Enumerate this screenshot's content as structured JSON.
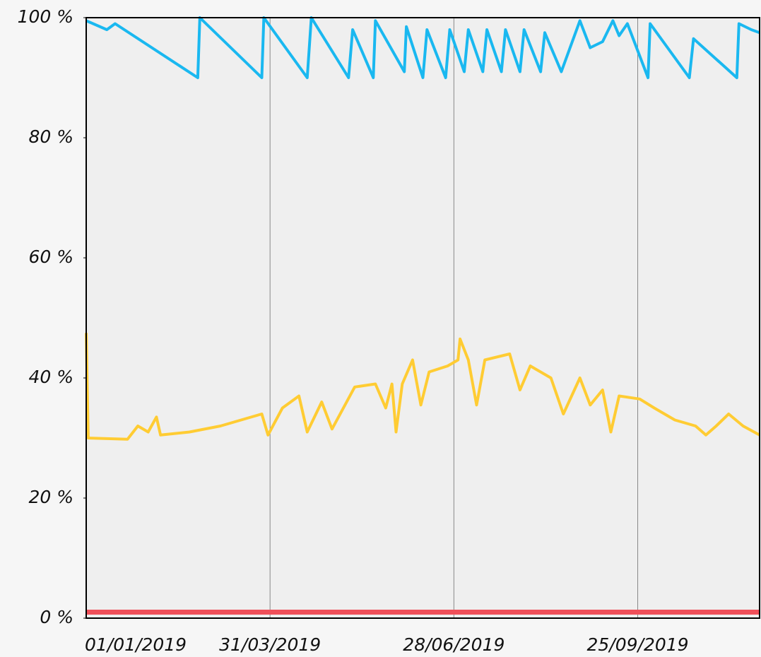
{
  "chart_data": {
    "type": "line",
    "xlim": [
      "2019-01-01",
      "2019-11-23"
    ],
    "xticks": [
      {
        "value": "2019-01-01",
        "label": "01/01/2019"
      },
      {
        "value": "2019-03-31",
        "label": "31/03/2019"
      },
      {
        "value": "2019-06-28",
        "label": "28/06/2019"
      },
      {
        "value": "2019-09-25",
        "label": "25/09/2019"
      }
    ],
    "ylim": [
      0,
      100
    ],
    "yticks": [
      {
        "value": 0,
        "label": "0 %"
      },
      {
        "value": 20,
        "label": "20 %"
      },
      {
        "value": 40,
        "label": "40 %"
      },
      {
        "value": 60,
        "label": "60 %"
      },
      {
        "value": 80,
        "label": "80 %"
      },
      {
        "value": 100,
        "label": "100 %"
      }
    ],
    "grid": true,
    "series": [
      {
        "color": "#1ab8f0",
        "x": [
          "2019-01-01",
          "2019-01-11",
          "2019-01-15",
          "2019-02-24",
          "2019-02-25",
          "2019-03-27",
          "2019-03-28",
          "2019-04-18",
          "2019-04-20",
          "2019-05-08",
          "2019-05-10",
          "2019-05-20",
          "2019-05-21",
          "2019-06-04",
          "2019-06-05",
          "2019-06-13",
          "2019-06-15",
          "2019-06-24",
          "2019-06-26",
          "2019-07-03",
          "2019-07-05",
          "2019-07-12",
          "2019-07-14",
          "2019-07-21",
          "2019-07-23",
          "2019-07-30",
          "2019-08-01",
          "2019-08-09",
          "2019-08-11",
          "2019-08-19",
          "2019-08-28",
          "2019-09-02",
          "2019-09-08",
          "2019-09-13",
          "2019-09-16",
          "2019-09-20",
          "2019-09-30",
          "2019-10-01",
          "2019-10-20",
          "2019-10-22",
          "2019-11-12",
          "2019-11-13",
          "2019-11-19",
          "2019-11-23"
        ],
        "values": [
          99.5,
          98,
          99,
          90,
          100,
          90,
          100,
          90,
          100,
          90,
          98,
          90,
          99.5,
          91,
          98.5,
          90,
          98,
          90,
          98,
          91,
          98,
          91,
          98,
          91,
          98,
          91,
          98,
          91,
          97.5,
          91,
          99.5,
          95,
          96,
          99.5,
          97,
          99,
          90,
          99,
          90,
          96.5,
          90,
          99,
          98,
          97.5
        ]
      },
      {
        "color": "#ffcc33",
        "x": [
          "2019-01-01",
          "2019-01-02",
          "2019-01-21",
          "2019-01-26",
          "2019-01-31",
          "2019-02-04",
          "2019-02-06",
          "2019-02-20",
          "2019-03-07",
          "2019-03-17",
          "2019-03-27",
          "2019-03-30",
          "2019-04-06",
          "2019-04-14",
          "2019-04-18",
          "2019-04-25",
          "2019-04-30",
          "2019-05-11",
          "2019-05-21",
          "2019-05-26",
          "2019-05-29",
          "2019-05-31",
          "2019-06-03",
          "2019-06-08",
          "2019-06-12",
          "2019-06-16",
          "2019-06-25",
          "2019-06-30",
          "2019-07-01",
          "2019-07-05",
          "2019-07-09",
          "2019-07-13",
          "2019-07-25",
          "2019-07-30",
          "2019-08-04",
          "2019-08-14",
          "2019-08-20",
          "2019-08-28",
          "2019-09-02",
          "2019-09-08",
          "2019-09-12",
          "2019-09-16",
          "2019-09-26",
          "2019-10-03",
          "2019-10-13",
          "2019-10-23",
          "2019-10-28",
          "2019-11-02",
          "2019-11-08",
          "2019-11-15",
          "2019-11-23"
        ],
        "values": [
          47.5,
          30,
          29.8,
          32,
          31,
          33.5,
          30.5,
          31,
          32,
          33,
          34,
          30.5,
          35,
          37,
          31,
          36,
          31.5,
          38.5,
          39,
          35,
          39,
          31,
          39,
          43,
          35.5,
          41,
          42,
          43,
          46.5,
          43,
          35.5,
          43,
          44,
          38,
          42,
          40,
          34,
          40,
          35.5,
          38,
          31,
          37,
          36.5,
          35,
          33,
          32,
          30.5,
          32,
          34,
          32,
          30.5
        ]
      },
      {
        "color": "#f0505a",
        "x": [
          "2019-01-01",
          "2019-11-23"
        ],
        "values": [
          1,
          1
        ]
      }
    ]
  }
}
